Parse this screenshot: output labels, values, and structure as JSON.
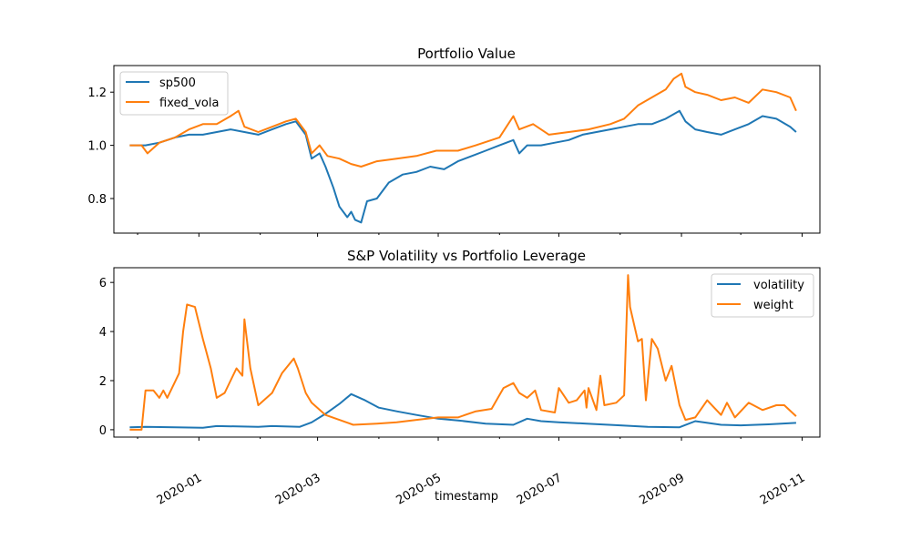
{
  "chart_data": [
    {
      "type": "line",
      "title": "Portfolio Value",
      "xlabel": "",
      "ylabel": "",
      "xlim": [
        "2019-11-19",
        "2020-11-10"
      ],
      "ylim": [
        0.67,
        1.3
      ],
      "yticks": [
        0.8,
        1.0,
        1.2
      ],
      "yticklabels": [
        "0.8",
        "1.0",
        "1.2"
      ],
      "legend_position": "upper left",
      "grid": false,
      "series": [
        {
          "name": "sp500",
          "color": "#1f77b4",
          "x": [
            "2019-11-27",
            "2019-12-05",
            "2019-12-12",
            "2019-12-20",
            "2019-12-27",
            "2020-01-03",
            "2020-01-10",
            "2020-01-17",
            "2020-01-24",
            "2020-01-31",
            "2020-02-07",
            "2020-02-14",
            "2020-02-19",
            "2020-02-24",
            "2020-02-27",
            "2020-03-02",
            "2020-03-05",
            "2020-03-09",
            "2020-03-12",
            "2020-03-16",
            "2020-03-18",
            "2020-03-20",
            "2020-03-23",
            "2020-03-26",
            "2020-03-31",
            "2020-04-06",
            "2020-04-13",
            "2020-04-20",
            "2020-04-27",
            "2020-05-04",
            "2020-05-11",
            "2020-05-18",
            "2020-05-25",
            "2020-06-01",
            "2020-06-08",
            "2020-06-11",
            "2020-06-15",
            "2020-06-22",
            "2020-06-29",
            "2020-07-06",
            "2020-07-13",
            "2020-07-20",
            "2020-07-27",
            "2020-08-03",
            "2020-08-10",
            "2020-08-17",
            "2020-08-24",
            "2020-08-31",
            "2020-09-03",
            "2020-09-08",
            "2020-09-14",
            "2020-09-21",
            "2020-09-28",
            "2020-10-05",
            "2020-10-12",
            "2020-10-19",
            "2020-10-26",
            "2020-10-29"
          ],
          "y": [
            1.0,
            1.0,
            1.01,
            1.03,
            1.04,
            1.04,
            1.05,
            1.06,
            1.05,
            1.04,
            1.06,
            1.08,
            1.09,
            1.04,
            0.95,
            0.97,
            0.92,
            0.84,
            0.77,
            0.73,
            0.75,
            0.72,
            0.71,
            0.79,
            0.8,
            0.86,
            0.89,
            0.9,
            0.92,
            0.91,
            0.94,
            0.96,
            0.98,
            1.0,
            1.02,
            0.97,
            1.0,
            1.0,
            1.01,
            1.02,
            1.04,
            1.05,
            1.06,
            1.07,
            1.08,
            1.08,
            1.1,
            1.13,
            1.09,
            1.06,
            1.05,
            1.04,
            1.06,
            1.08,
            1.11,
            1.1,
            1.07,
            1.05
          ]
        },
        {
          "name": "fixed_vola",
          "color": "#ff7f0e",
          "x": [
            "2019-11-27",
            "2019-12-03",
            "2019-12-06",
            "2019-12-12",
            "2019-12-20",
            "2019-12-27",
            "2020-01-03",
            "2020-01-10",
            "2020-01-17",
            "2020-01-21",
            "2020-01-24",
            "2020-01-31",
            "2020-02-07",
            "2020-02-14",
            "2020-02-19",
            "2020-02-24",
            "2020-02-27",
            "2020-03-02",
            "2020-03-06",
            "2020-03-12",
            "2020-03-18",
            "2020-03-23",
            "2020-03-31",
            "2020-04-10",
            "2020-04-20",
            "2020-04-30",
            "2020-05-11",
            "2020-05-20",
            "2020-06-01",
            "2020-06-08",
            "2020-06-11",
            "2020-06-18",
            "2020-06-26",
            "2020-07-06",
            "2020-07-16",
            "2020-07-27",
            "2020-08-03",
            "2020-08-10",
            "2020-08-17",
            "2020-08-24",
            "2020-08-28",
            "2020-09-01",
            "2020-09-03",
            "2020-09-08",
            "2020-09-14",
            "2020-09-21",
            "2020-09-28",
            "2020-10-05",
            "2020-10-12",
            "2020-10-19",
            "2020-10-26",
            "2020-10-29"
          ],
          "y": [
            1.0,
            1.0,
            0.97,
            1.01,
            1.03,
            1.06,
            1.08,
            1.08,
            1.11,
            1.13,
            1.07,
            1.05,
            1.07,
            1.09,
            1.1,
            1.05,
            0.97,
            1.0,
            0.96,
            0.95,
            0.93,
            0.92,
            0.94,
            0.95,
            0.96,
            0.98,
            0.98,
            1.0,
            1.03,
            1.11,
            1.06,
            1.08,
            1.04,
            1.05,
            1.06,
            1.08,
            1.1,
            1.15,
            1.18,
            1.21,
            1.25,
            1.27,
            1.22,
            1.2,
            1.19,
            1.17,
            1.18,
            1.16,
            1.21,
            1.2,
            1.18,
            1.13
          ]
        }
      ]
    },
    {
      "type": "line",
      "title": "S&P Volatility vs Portfolio Leverage",
      "xlabel": "timestamp",
      "ylabel": "",
      "xlim": [
        "2019-11-19",
        "2020-11-10"
      ],
      "ylim": [
        -0.3,
        6.6
      ],
      "yticks": [
        0,
        2,
        4,
        6
      ],
      "yticklabels": [
        "0",
        "2",
        "4",
        "6"
      ],
      "xticks": [
        "2020-01-01",
        "2020-03-01",
        "2020-05-01",
        "2020-07-01",
        "2020-09-01",
        "2020-11-01"
      ],
      "xticklabels": [
        "2020-01",
        "2020-03",
        "2020-05",
        "2020-07",
        "2020-09",
        "2020-11"
      ],
      "legend_position": "upper right",
      "grid": false,
      "series": [
        {
          "name": "volatility",
          "color": "#1f77b4",
          "x": [
            "2019-11-27",
            "2019-12-05",
            "2019-12-20",
            "2020-01-03",
            "2020-01-10",
            "2020-01-31",
            "2020-02-07",
            "2020-02-21",
            "2020-02-27",
            "2020-03-05",
            "2020-03-12",
            "2020-03-18",
            "2020-03-25",
            "2020-04-01",
            "2020-04-10",
            "2020-04-20",
            "2020-05-01",
            "2020-05-11",
            "2020-05-25",
            "2020-06-08",
            "2020-06-15",
            "2020-06-22",
            "2020-07-01",
            "2020-07-15",
            "2020-08-01",
            "2020-08-15",
            "2020-08-31",
            "2020-09-08",
            "2020-09-21",
            "2020-10-01",
            "2020-10-15",
            "2020-10-29"
          ],
          "y": [
            0.1,
            0.12,
            0.1,
            0.08,
            0.15,
            0.12,
            0.15,
            0.12,
            0.3,
            0.65,
            1.05,
            1.45,
            1.2,
            0.9,
            0.75,
            0.6,
            0.45,
            0.38,
            0.25,
            0.2,
            0.45,
            0.35,
            0.3,
            0.25,
            0.18,
            0.12,
            0.1,
            0.35,
            0.2,
            0.18,
            0.22,
            0.28
          ]
        },
        {
          "name": "weight",
          "color": "#ff7f0e",
          "x": [
            "2019-11-27",
            "2019-12-03",
            "2019-12-05",
            "2019-12-09",
            "2019-12-12",
            "2019-12-14",
            "2019-12-16",
            "2019-12-19",
            "2019-12-22",
            "2019-12-24",
            "2019-12-26",
            "2019-12-30",
            "2020-01-03",
            "2020-01-07",
            "2020-01-10",
            "2020-01-14",
            "2020-01-17",
            "2020-01-20",
            "2020-01-23",
            "2020-01-24",
            "2020-01-27",
            "2020-01-31",
            "2020-02-07",
            "2020-02-12",
            "2020-02-18",
            "2020-02-20",
            "2020-02-24",
            "2020-02-27",
            "2020-03-05",
            "2020-03-12",
            "2020-03-19",
            "2020-03-31",
            "2020-04-10",
            "2020-04-20",
            "2020-05-01",
            "2020-05-11",
            "2020-05-20",
            "2020-05-28",
            "2020-06-03",
            "2020-06-08",
            "2020-06-11",
            "2020-06-15",
            "2020-06-19",
            "2020-06-22",
            "2020-06-29",
            "2020-07-01",
            "2020-07-06",
            "2020-07-10",
            "2020-07-14",
            "2020-07-15",
            "2020-07-16",
            "2020-07-20",
            "2020-07-22",
            "2020-07-24",
            "2020-07-30",
            "2020-08-03",
            "2020-08-05",
            "2020-08-06",
            "2020-08-10",
            "2020-08-12",
            "2020-08-14",
            "2020-08-17",
            "2020-08-20",
            "2020-08-24",
            "2020-08-27",
            "2020-08-31",
            "2020-09-03",
            "2020-09-08",
            "2020-09-14",
            "2020-09-21",
            "2020-09-24",
            "2020-09-28",
            "2020-10-05",
            "2020-10-12",
            "2020-10-19",
            "2020-10-23",
            "2020-10-29"
          ],
          "y": [
            0.0,
            0.0,
            1.6,
            1.6,
            1.3,
            1.6,
            1.3,
            1.8,
            2.3,
            4.0,
            5.1,
            5.0,
            3.7,
            2.5,
            1.3,
            1.5,
            2.0,
            2.5,
            2.2,
            4.5,
            2.5,
            1.0,
            1.5,
            2.3,
            2.9,
            2.5,
            1.5,
            1.1,
            0.6,
            0.4,
            0.2,
            0.25,
            0.3,
            0.4,
            0.5,
            0.5,
            0.75,
            0.85,
            1.7,
            1.9,
            1.5,
            1.3,
            1.6,
            0.8,
            0.7,
            1.7,
            1.1,
            1.2,
            1.6,
            0.9,
            1.7,
            0.8,
            2.2,
            1.0,
            1.1,
            1.4,
            6.3,
            5.0,
            3.6,
            3.7,
            1.2,
            3.7,
            3.3,
            2.0,
            2.6,
            1.0,
            0.4,
            0.5,
            1.2,
            0.6,
            1.1,
            0.5,
            1.1,
            0.8,
            1.0,
            1.0,
            0.55
          ]
        }
      ]
    }
  ]
}
